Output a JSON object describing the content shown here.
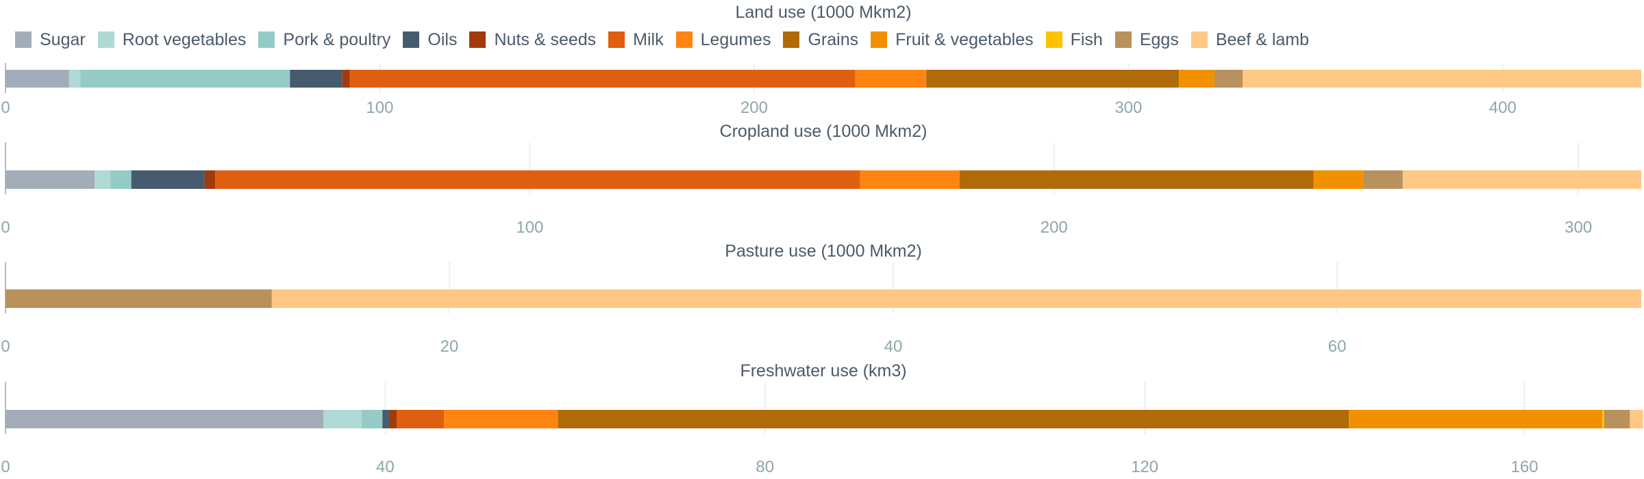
{
  "legend": [
    {
      "label": "Sugar",
      "color": "#a2adb9"
    },
    {
      "label": "Root vegetables",
      "color": "#b0d9d6"
    },
    {
      "label": "Pork & poultry",
      "color": "#94cbc7"
    },
    {
      "label": "Oils",
      "color": "#475b6e"
    },
    {
      "label": "Nuts & seeds",
      "color": "#a23a0a"
    },
    {
      "label": "Milk",
      "color": "#e05e0f"
    },
    {
      "label": "Legumes",
      "color": "#ff8510"
    },
    {
      "label": "Grains",
      "color": "#b06a07"
    },
    {
      "label": "Fruit & vegetables",
      "color": "#f29100"
    },
    {
      "label": "Fish",
      "color": "#fcc300"
    },
    {
      "label": "Eggs",
      "color": "#b8915c"
    },
    {
      "label": "Beef & lamb",
      "color": "#ffc884"
    }
  ],
  "chart_data": [
    {
      "type": "bar",
      "orientation": "horizontal-stacked",
      "title": "Land use (1000 Mkm2)",
      "xlim": [
        0,
        437
      ],
      "ticks": [
        "0",
        "100",
        "200",
        "300",
        "400"
      ],
      "series": [
        {
          "name": "Sugar",
          "value": 17
        },
        {
          "name": "Root vegetables",
          "value": 3
        },
        {
          "name": "Pork & poultry",
          "value": 56
        },
        {
          "name": "Oils",
          "value": 14
        },
        {
          "name": "Nuts & seeds",
          "value": 2
        },
        {
          "name": "Milk",
          "value": 135
        },
        {
          "name": "Legumes",
          "value": 19
        },
        {
          "name": "Grains",
          "value": 67.5
        },
        {
          "name": "Fruit & vegetables",
          "value": 9.5
        },
        {
          "name": "Fish",
          "value": 0
        },
        {
          "name": "Eggs",
          "value": 7.5
        },
        {
          "name": "Beef & lamb",
          "value": 106.5
        }
      ]
    },
    {
      "type": "bar",
      "orientation": "horizontal-stacked",
      "title": "Cropland use (1000 Mkm2)",
      "xlim": [
        0,
        312
      ],
      "ticks": [
        "0",
        "100",
        "200",
        "300"
      ],
      "series": [
        {
          "name": "Sugar",
          "value": 17
        },
        {
          "name": "Root vegetables",
          "value": 3
        },
        {
          "name": "Pork & poultry",
          "value": 4
        },
        {
          "name": "Oils",
          "value": 14
        },
        {
          "name": "Nuts & seeds",
          "value": 2
        },
        {
          "name": "Milk",
          "value": 123
        },
        {
          "name": "Legumes",
          "value": 19
        },
        {
          "name": "Grains",
          "value": 67.5
        },
        {
          "name": "Fruit & vegetables",
          "value": 9.5
        },
        {
          "name": "Fish",
          "value": 0
        },
        {
          "name": "Eggs",
          "value": 7.5
        },
        {
          "name": "Beef & lamb",
          "value": 45.5
        }
      ]
    },
    {
      "type": "bar",
      "orientation": "horizontal-stacked",
      "title": "Pasture use (1000 Mkm2)",
      "xlim": [
        0,
        73.7
      ],
      "ticks": [
        "0",
        "20",
        "40",
        "60"
      ],
      "series": [
        {
          "name": "Sugar",
          "value": 0
        },
        {
          "name": "Root vegetables",
          "value": 0
        },
        {
          "name": "Pork & poultry",
          "value": 0
        },
        {
          "name": "Oils",
          "value": 0
        },
        {
          "name": "Nuts & seeds",
          "value": 0
        },
        {
          "name": "Milk",
          "value": 0
        },
        {
          "name": "Legumes",
          "value": 0
        },
        {
          "name": "Grains",
          "value": 0
        },
        {
          "name": "Fruit & vegetables",
          "value": 0
        },
        {
          "name": "Fish",
          "value": 0
        },
        {
          "name": "Eggs",
          "value": 12
        },
        {
          "name": "Beef & lamb",
          "value": 61.7
        }
      ]
    },
    {
      "type": "bar",
      "orientation": "horizontal-stacked",
      "title": "Freshwater use (km3)",
      "xlim": [
        0,
        172.3
      ],
      "ticks": [
        "0",
        "40",
        "80",
        "120",
        "160"
      ],
      "series": [
        {
          "name": "Sugar",
          "value": 33.5
        },
        {
          "name": "Root vegetables",
          "value": 4
        },
        {
          "name": "Pork & poultry",
          "value": 2.2
        },
        {
          "name": "Oils",
          "value": 0.7
        },
        {
          "name": "Nuts & seeds",
          "value": 0.8
        },
        {
          "name": "Milk",
          "value": 5
        },
        {
          "name": "Legumes",
          "value": 12
        },
        {
          "name": "Grains",
          "value": 83.3
        },
        {
          "name": "Fruit & vegetables",
          "value": 26.7
        },
        {
          "name": "Fish",
          "value": 0.2
        },
        {
          "name": "Eggs",
          "value": 2.7
        },
        {
          "name": "Beef & lamb",
          "value": 1.4
        }
      ]
    }
  ]
}
